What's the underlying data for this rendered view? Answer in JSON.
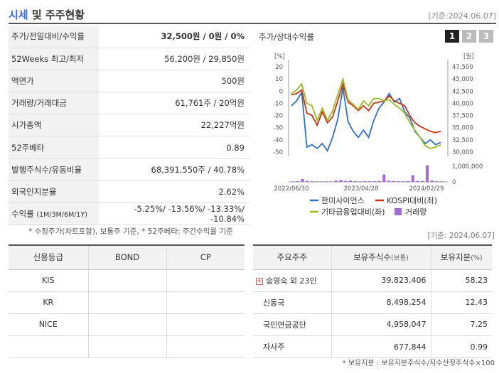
{
  "header": {
    "title_blue": "시세",
    "title_rest": " 및 주주현황",
    "date": "[기준:2024.06.07]"
  },
  "price_table": [
    {
      "label": "주가/전일대비/수익률",
      "value": "32,500원 / 0원 / 0%",
      "bold": true
    },
    {
      "label": "52Weeks 최고/최저",
      "value": "56,200원 / 29,850원"
    },
    {
      "label": "액면가",
      "value": "500원"
    },
    {
      "label": "거래량/거래대금",
      "value": "61,761주 / 20억원"
    },
    {
      "label": "시가총액",
      "value": "22,227억원"
    },
    {
      "label": "52주베타",
      "value": "0.89"
    },
    {
      "label": "발행주식수/유동비율",
      "value": "68,391,550주 / 40.78%"
    },
    {
      "label": "외국인지분율",
      "value": "2.62%"
    }
  ],
  "returns_row": {
    "label": "수익률",
    "label_sub": "(1M/3M/6M/1Y)",
    "value": "-5.25%/ -13.56%/ -13.33%/ -10.84%"
  },
  "note": "* 수정주가(차트포함), 보통주 기준, * 52주베타: 주간수익률 기준",
  "date2": "[기준: 2024.06.07]",
  "credit": {
    "headers": [
      "신용등급",
      "BOND",
      "CP"
    ],
    "rows": [
      [
        "KIS",
        "",
        ""
      ],
      [
        "KR",
        "",
        ""
      ],
      [
        "NICE",
        "",
        ""
      ],
      [
        "",
        "",
        ""
      ]
    ]
  },
  "holders": {
    "headers": [
      "주요주주",
      "보유주식수",
      "(보통)",
      "보유지분",
      "(%)"
    ],
    "rows": [
      {
        "name": "송영숙 외 23인",
        "shares": "39,823,406",
        "pct": "58.23",
        "expand": "+"
      },
      {
        "name": "신동국",
        "shares": "8,498,254",
        "pct": "12.43"
      },
      {
        "name": "국민연금공단",
        "shares": "4,958,047",
        "pct": "7.25"
      },
      {
        "name": "자사주",
        "shares": "677,844",
        "pct": "0.99"
      }
    ]
  },
  "footnote": "* 보유지분 : 보유지분주식수/지수산정주식수×100",
  "chart": {
    "title": "주가/상대수익률",
    "tabs": [
      "1",
      "2",
      "3"
    ]
  },
  "chart_data": {
    "type": "line",
    "left_axis_unit": "[%]",
    "right_axis_unit": "[원]",
    "left_ticks": [
      "20",
      "10",
      "0",
      "-10",
      "-20",
      "-30",
      "-40",
      "-50"
    ],
    "right_ticks": [
      "47,500",
      "45,000",
      "42,500",
      "40,000",
      "37,500",
      "35,000",
      "32,500",
      "30,000"
    ],
    "volume_tick": "1,000,000",
    "volume_tick0": "0",
    "x_labels": [
      "2022/06/30",
      "2023/04/28",
      "2024/02/29"
    ],
    "ylim_left": [
      -50,
      20
    ],
    "ylim_right": [
      30000,
      47500
    ],
    "series": [
      {
        "name": "한미사이언스",
        "color": "#2f6fcc",
        "values": [
          -12,
          -8,
          -1,
          -46,
          -44,
          -47,
          -43,
          -49,
          -38,
          -23,
          3,
          -25,
          -33,
          -38,
          -32,
          -38,
          -24,
          -14,
          -9,
          -2,
          -9,
          -6,
          -17,
          -22,
          -33,
          -38,
          -43,
          -40,
          -44,
          -42
        ]
      },
      {
        "name": "KOSPI대비(좌)",
        "color": "#cc3311",
        "values": [
          -3,
          -2,
          1,
          -18,
          -20,
          -28,
          -17,
          -26,
          -21,
          -8,
          6,
          -9,
          -12,
          -16,
          -12,
          -16,
          -10,
          -9,
          -8,
          -4,
          -8,
          -10,
          -12,
          -20,
          -26,
          -29,
          -31,
          -33,
          -34,
          -33
        ]
      },
      {
        "name": "기타금융업대비(좌)",
        "color": "#99bb22",
        "values": [
          -2,
          1,
          6,
          -10,
          -12,
          -24,
          -14,
          -24,
          -16,
          -3,
          10,
          -7,
          -11,
          -15,
          -8,
          -12,
          -6,
          -6,
          -8,
          -7,
          -11,
          -14,
          -18,
          -26,
          -32,
          -38,
          -45,
          -47,
          -46,
          -44
        ]
      }
    ],
    "volume": {
      "name": "거래량",
      "color": "#a36bd6",
      "values": [
        0.04,
        0.07,
        0.28,
        0.1,
        0.06,
        0.05,
        0.04,
        0.05,
        0.04,
        0.12,
        0.18,
        0.1,
        0.12,
        0.07,
        0.05,
        0.08,
        0.06,
        0.06,
        0.08,
        0.7,
        0.12,
        0.08,
        0.06,
        0.05,
        0.08,
        0.62,
        0.1,
        0.08,
        1.55,
        0.14,
        0.06,
        0.05
      ]
    },
    "legend": [
      {
        "name": "한미사이언스",
        "color": "#2f6fcc",
        "kind": "line"
      },
      {
        "name": "KOSPI대비(좌)",
        "color": "#cc3311",
        "kind": "line"
      },
      {
        "name": "기타금융업대비(좌)",
        "color": "#99bb22",
        "kind": "line"
      },
      {
        "name": "거래량",
        "color": "#a36bd6",
        "kind": "box"
      }
    ]
  }
}
